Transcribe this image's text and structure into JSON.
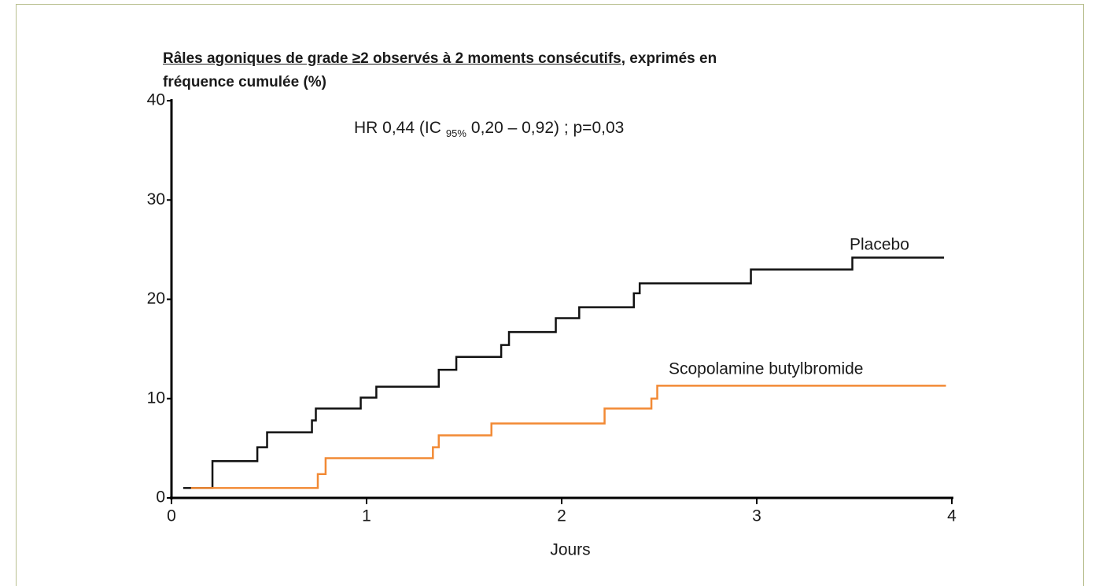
{
  "chart_data": {
    "type": "step",
    "title_underlined": "Râles agoniques de grade ≥2 observés à 2 moments consécutifs",
    "title_line1_end": ", exprimés en",
    "title_line2": "fréquence cumulée (%)",
    "annotation": [
      "HR 0,44 (IC",
      "95%",
      "0,20 – 0,92) ; p=0,03"
    ],
    "xlabel": "Jours",
    "xlim": [
      0,
      4
    ],
    "xticks": [
      0,
      1,
      2,
      3,
      4
    ],
    "ylim": [
      0,
      40
    ],
    "yticks": [
      0,
      10,
      20,
      30,
      40
    ],
    "series": [
      {
        "name": "Placebo",
        "color": "#111111",
        "x": [
          0.06,
          0.21,
          0.44,
          0.49,
          0.72,
          0.74,
          0.97,
          1.05,
          1.37,
          1.46,
          1.69,
          1.73,
          1.97,
          2.09,
          2.37,
          2.4,
          2.97,
          3.49,
          3.96
        ],
        "values": [
          1.0,
          3.7,
          5.1,
          6.6,
          7.8,
          9.0,
          10.1,
          11.2,
          12.9,
          14.2,
          15.4,
          16.7,
          18.1,
          19.2,
          20.6,
          21.6,
          23.0,
          24.2,
          24.2
        ]
      },
      {
        "name": "Scopolamine butylbromide",
        "color": "#f28a35",
        "x": [
          0.1,
          0.75,
          0.79,
          1.34,
          1.37,
          1.64,
          2.22,
          2.46,
          2.49,
          3.97
        ],
        "values": [
          1.0,
          2.4,
          4.0,
          5.1,
          6.3,
          7.5,
          9.0,
          10.0,
          11.3,
          11.3
        ]
      }
    ]
  }
}
